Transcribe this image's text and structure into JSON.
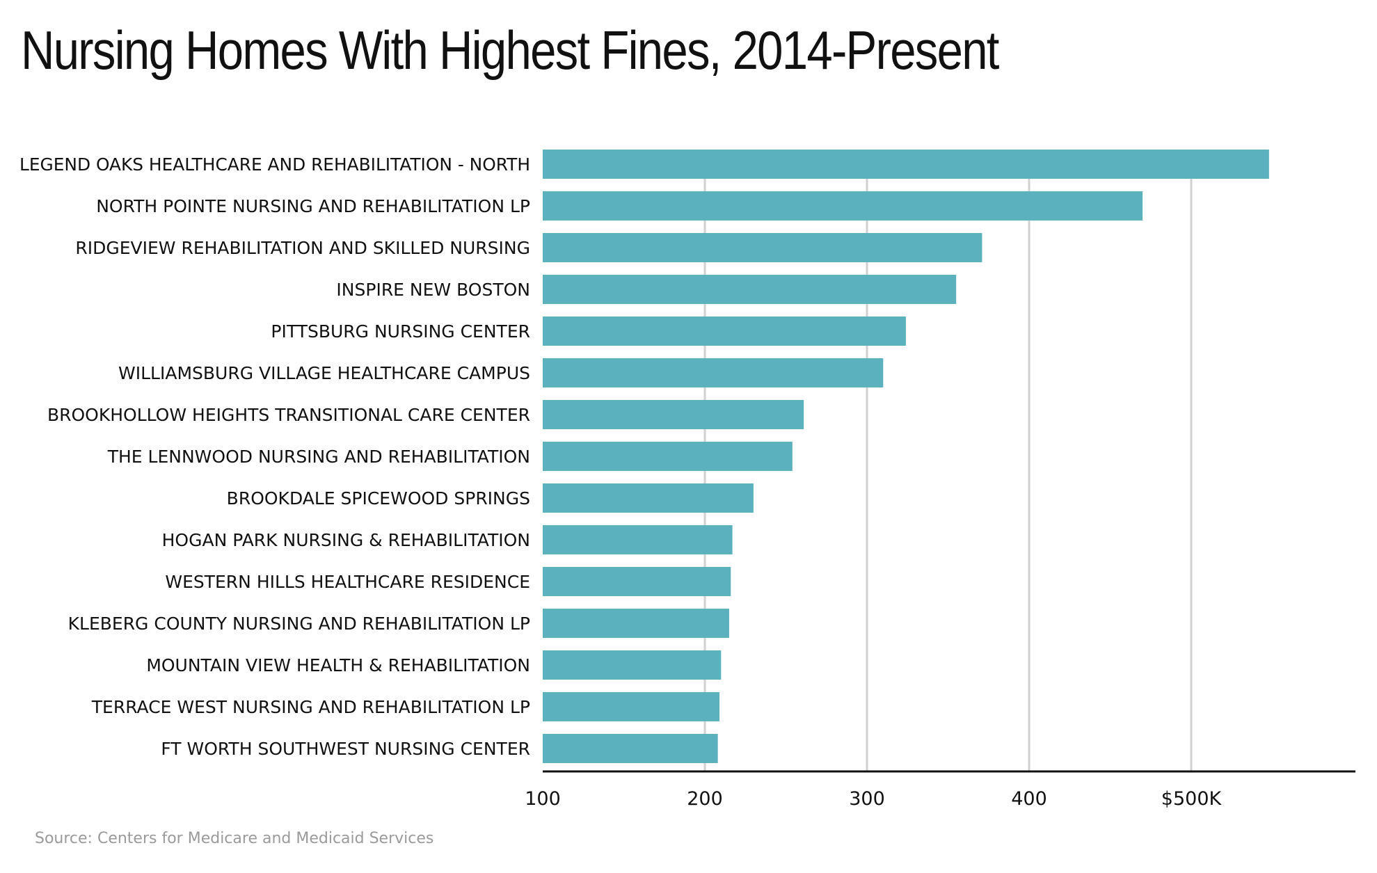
{
  "chart_data": {
    "type": "bar",
    "orientation": "horizontal",
    "title": "Nursing Homes With Highest Fines, 2014-Present",
    "source": "Source: Centers for Medicare and Medicaid Services",
    "categories": [
      "LEGEND OAKS HEALTHCARE AND REHABILITATION - NORTH",
      "NORTH POINTE NURSING AND REHABILITATION LP",
      "RIDGEVIEW REHABILITATION AND SKILLED NURSING",
      "INSPIRE NEW BOSTON",
      "PITTSBURG NURSING CENTER",
      "WILLIAMSBURG VILLAGE HEALTHCARE CAMPUS",
      "BROOKHOLLOW HEIGHTS TRANSITIONAL CARE CENTER",
      "THE LENNWOOD NURSING AND REHABILITATION",
      "BROOKDALE SPICEWOOD SPRINGS",
      "HOGAN PARK NURSING & REHABILITATION",
      "WESTERN HILLS HEALTHCARE RESIDENCE",
      "KLEBERG COUNTY NURSING AND REHABILITATION LP",
      "MOUNTAIN VIEW HEALTH & REHABILITATION",
      "TERRACE WEST NURSING AND REHABILITATION LP",
      "FT WORTH SOUTHWEST NURSING CENTER"
    ],
    "values": [
      548,
      470,
      371,
      355,
      324,
      310,
      261,
      254,
      230,
      217,
      216,
      215,
      210,
      209,
      208
    ],
    "unit": "thousands of dollars",
    "xlim": [
      100,
      600
    ],
    "ticks": [
      100,
      200,
      300,
      400,
      500
    ],
    "tick_labels": [
      "100",
      "200",
      "300",
      "400",
      "$500K"
    ],
    "gridlines": [
      200,
      300,
      400,
      500
    ],
    "grid": true,
    "legend": "none",
    "bar_color": "#5bb1bd",
    "grid_color": "#d0d0d0",
    "axis_color": "#111111"
  }
}
